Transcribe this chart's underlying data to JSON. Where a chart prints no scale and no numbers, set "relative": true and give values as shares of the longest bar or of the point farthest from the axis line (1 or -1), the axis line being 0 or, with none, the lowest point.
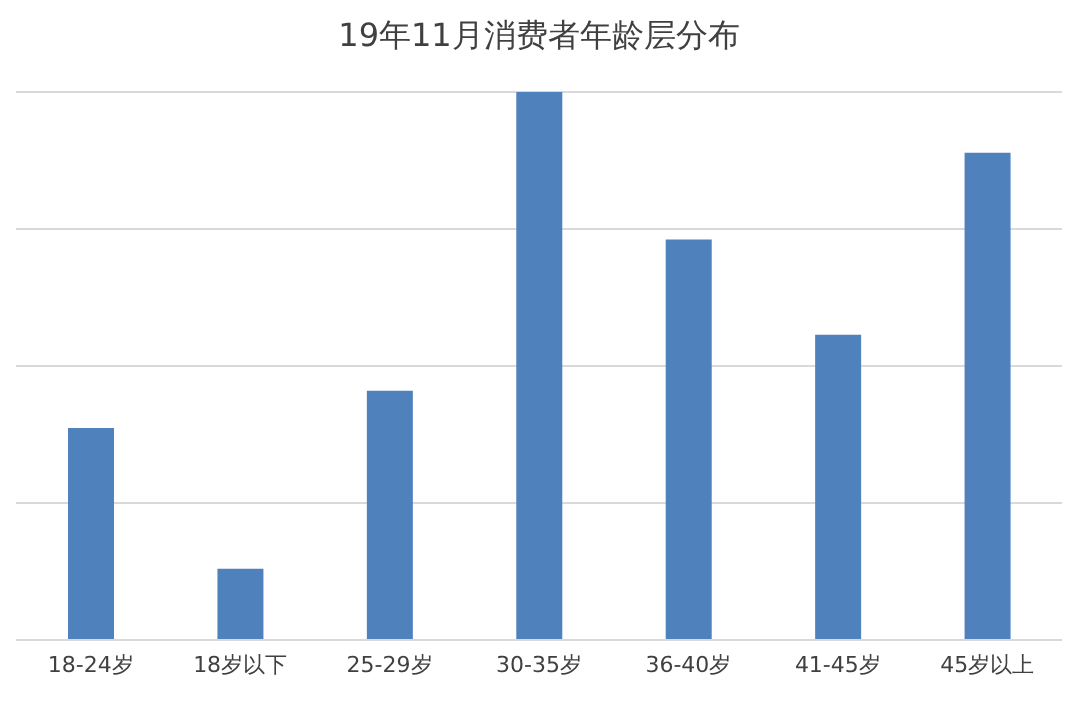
{
  "chart_data": {
    "type": "bar",
    "title": "19年11月消费者年龄层分布",
    "categories": [
      "18-24岁",
      "18岁以下",
      "25-29岁",
      "30-35岁",
      "36-40岁",
      "41-45岁",
      "45岁以上"
    ],
    "values": [
      0.387,
      0.13,
      0.455,
      1,
      0.731,
      0.557,
      0.889
    ],
    "color": "#4f81bd",
    "relative": true,
    "grid": "y"
  }
}
